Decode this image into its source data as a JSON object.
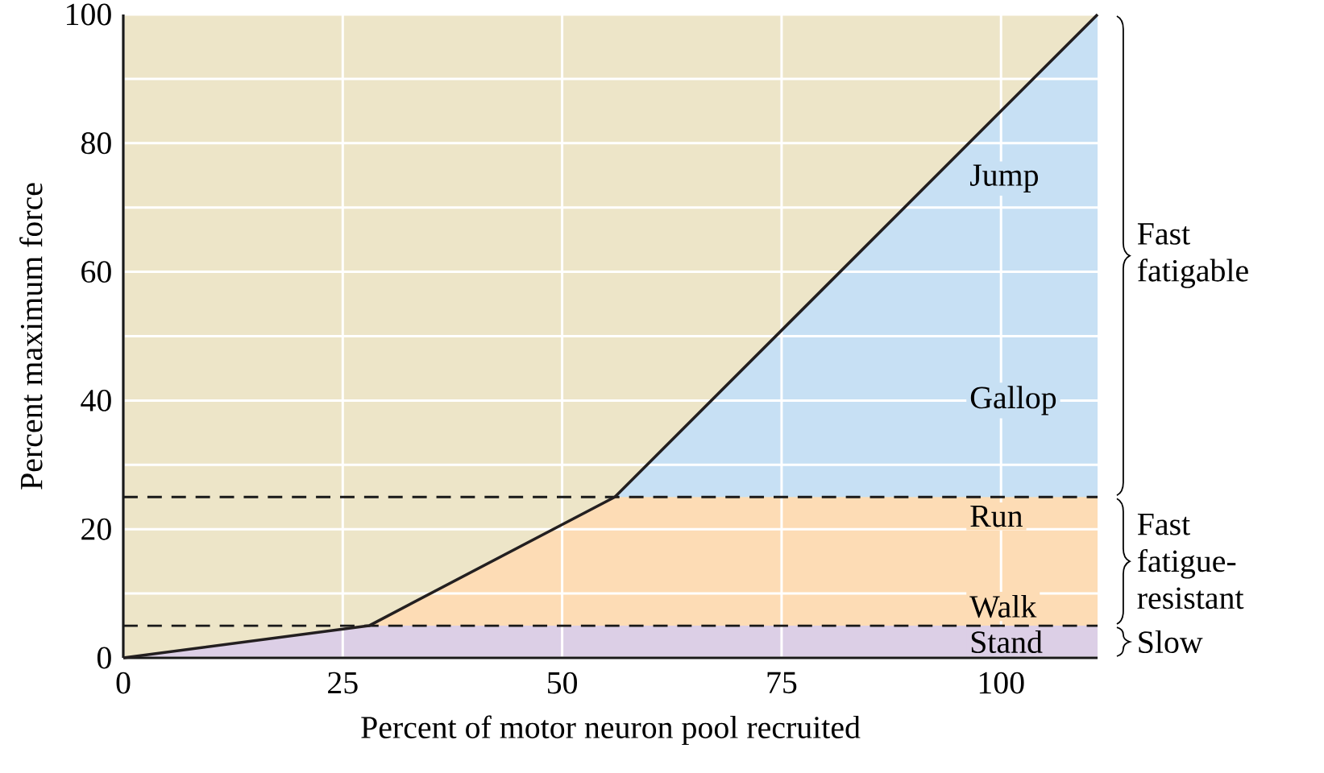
{
  "chart_data": {
    "type": "line",
    "xlabel": "Percent of motor neuron pool recruited",
    "ylabel": "Percent maximum force",
    "series": [
      {
        "color": "#231f20",
        "x": [
          0,
          28,
          56,
          111
        ],
        "values": [
          0,
          5,
          25,
          100
        ]
      }
    ],
    "xlim": [
      0,
      111
    ],
    "ylim": [
      0,
      100
    ],
    "xticks": [
      0,
      25,
      50,
      75,
      100
    ],
    "yticks": [
      0,
      {
        "value": 10,
        "label": null
      },
      20,
      {
        "value": 30,
        "label": null
      },
      40,
      {
        "value": 50,
        "label": null
      },
      60,
      {
        "value": 70,
        "label": null
      },
      80,
      {
        "value": 90,
        "label": null
      },
      100
    ],
    "grid": true,
    "line_style": "solid",
    "bands": [
      {
        "axis": "y",
        "from": 0,
        "to": 5,
        "label": "Slow",
        "color": "#dccfe6"
      },
      {
        "axis": "y",
        "from": 5,
        "to": 25,
        "label": "Fast fatigue-resistant",
        "color": "#fddcb5"
      },
      {
        "axis": "y",
        "from": 25,
        "to": 100,
        "label": "Fast fatigable",
        "color": "#c7e0f4"
      }
    ],
    "ref_lines": [
      {
        "axis": "y",
        "value": 5,
        "line_style": "dashed"
      },
      {
        "axis": "y",
        "value": 25,
        "line_style": "dashed"
      }
    ],
    "annotations": [
      "Jump",
      "Gallop",
      "Run",
      "Walk",
      "Stand"
    ]
  }
}
